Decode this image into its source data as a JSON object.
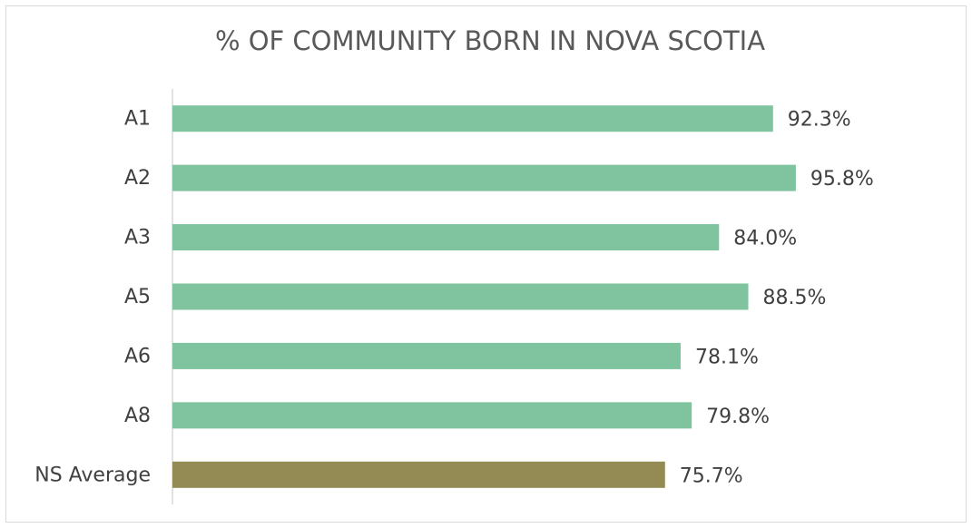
{
  "chart_data": {
    "type": "bar",
    "orientation": "horizontal",
    "title": "% OF COMMUNITY BORN IN NOVA SCOTIA",
    "categories": [
      "A1",
      "A2",
      "A3",
      "A5",
      "A6",
      "A8",
      "NS Average"
    ],
    "values": [
      92.3,
      95.8,
      84.0,
      88.5,
      78.1,
      79.8,
      75.7
    ],
    "value_labels": [
      "92.3%",
      "95.8%",
      "84.0%",
      "88.5%",
      "78.1%",
      "79.8%",
      "75.7%"
    ],
    "colors": [
      "#7fc49e",
      "#7fc49e",
      "#7fc49e",
      "#7fc49e",
      "#7fc49e",
      "#7fc49e",
      "#948a54"
    ],
    "xlim": [
      0,
      100
    ]
  }
}
